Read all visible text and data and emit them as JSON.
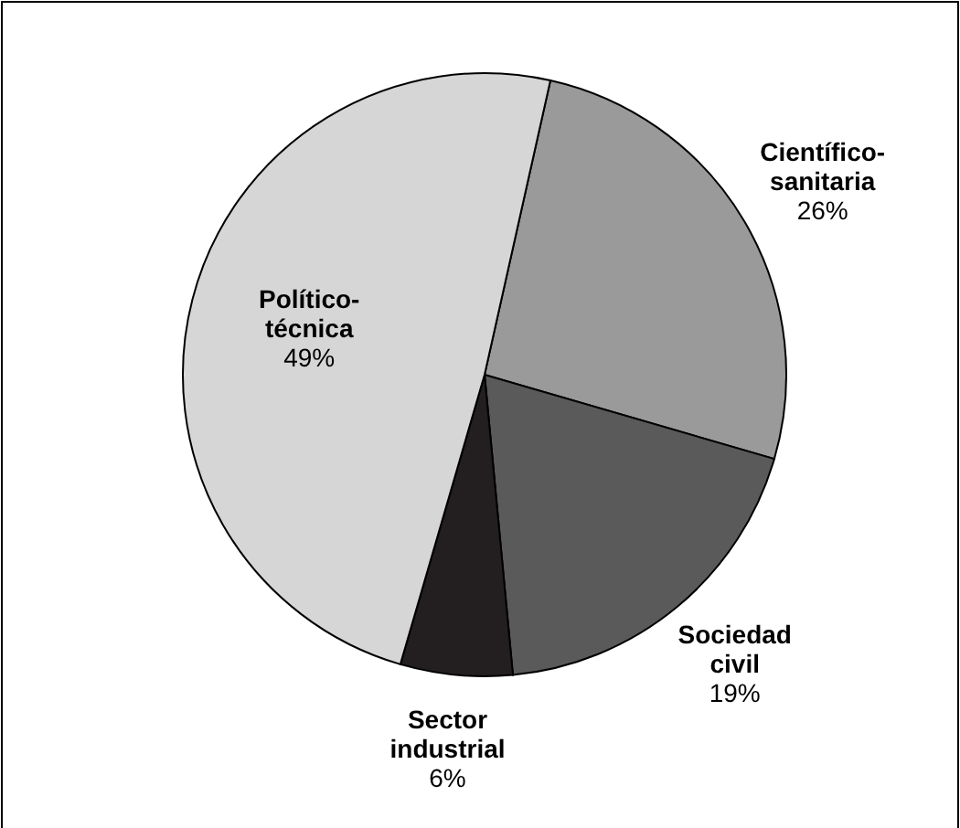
{
  "chart_data": {
    "type": "pie",
    "categories": [
      "Científico-sanitaria",
      "Sociedad civil",
      "Sector industrial",
      "Político-técnica"
    ],
    "values": [
      26,
      19,
      6,
      49
    ],
    "value_labels": [
      "26%",
      "19%",
      "6%",
      "49%"
    ],
    "colors": [
      "#9a9a9a",
      "#5a5a5a",
      "#231f20",
      "#d6d6d6"
    ]
  }
}
